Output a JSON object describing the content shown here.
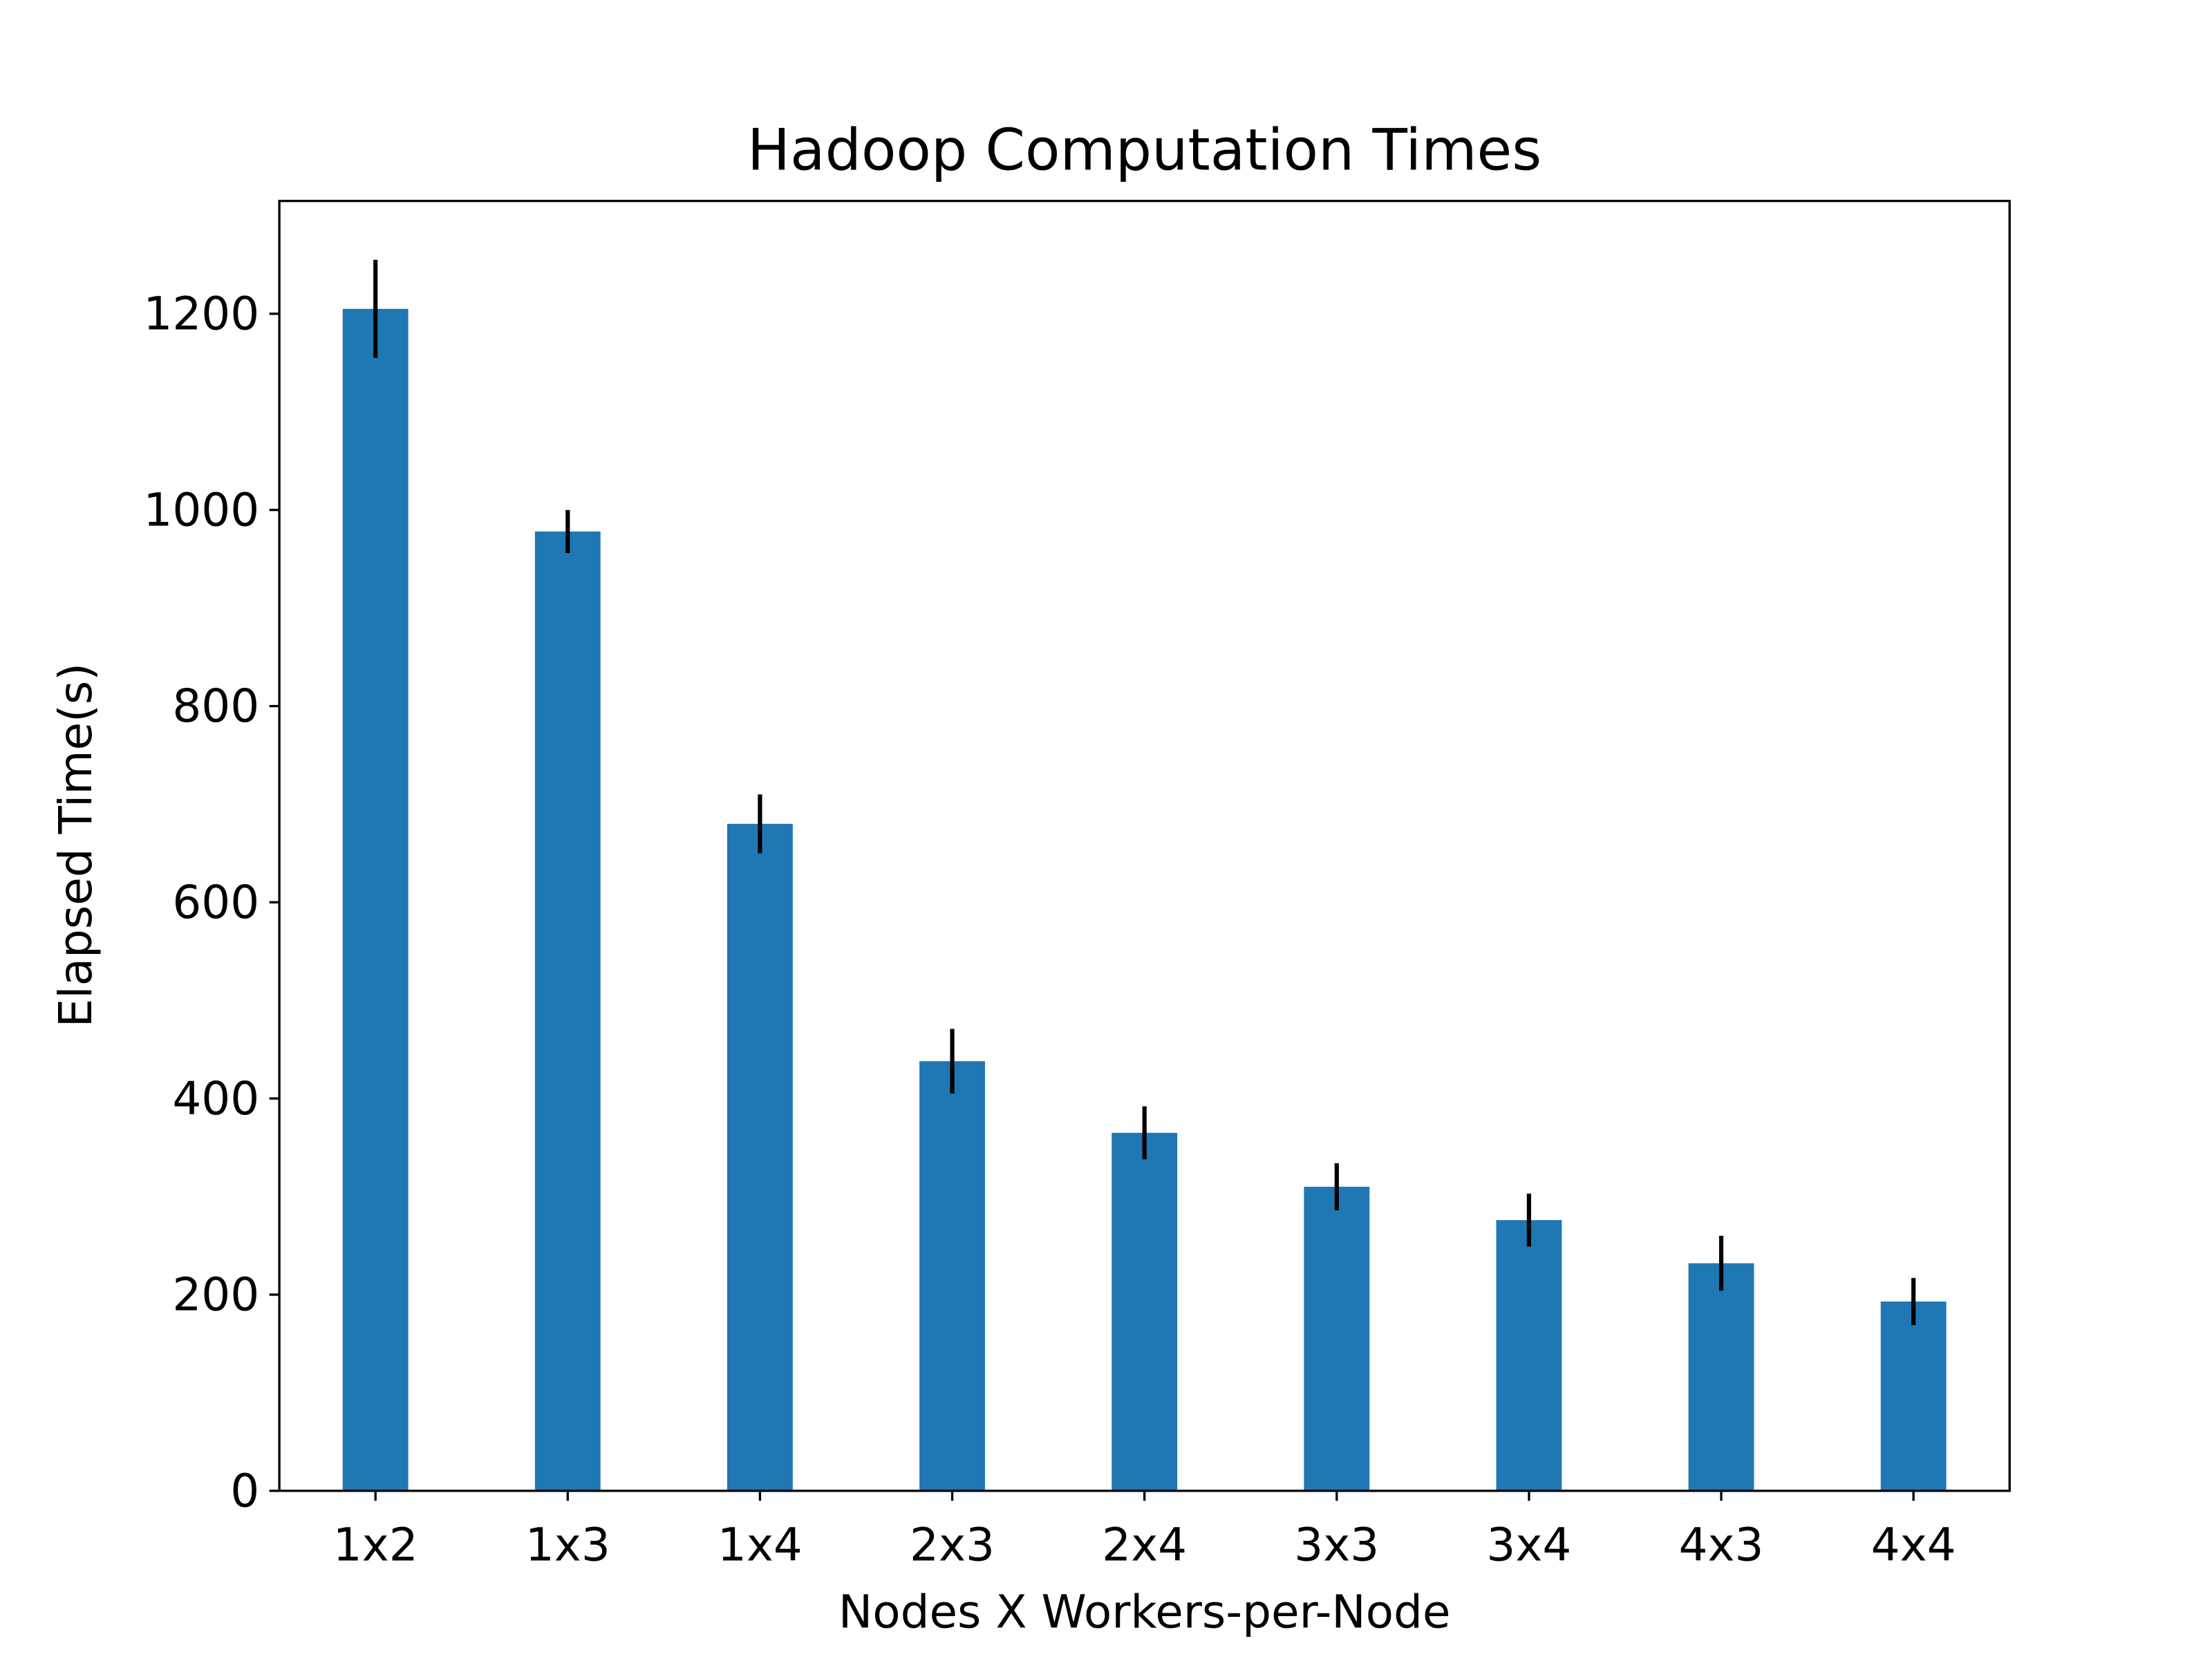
{
  "chart_data": {
    "type": "bar",
    "title": "Hadoop Computation Times",
    "xlabel": "Nodes X Workers-per-Node",
    "ylabel": "Elapsed Time(s)",
    "categories": [
      "1x2",
      "1x3",
      "1x4",
      "2x3",
      "2x4",
      "3x3",
      "3x4",
      "4x3",
      "4x4"
    ],
    "values": [
      1205,
      978,
      680,
      438,
      365,
      310,
      276,
      232,
      193
    ],
    "errors": [
      50,
      22,
      30,
      33,
      27,
      24,
      27,
      28,
      24
    ],
    "ylim": [
      0,
      1315
    ],
    "yticks": [
      0,
      200,
      400,
      600,
      800,
      1000,
      1200
    ],
    "grid": false,
    "bar_color": "#1f77b4",
    "error_color": "#000000"
  }
}
